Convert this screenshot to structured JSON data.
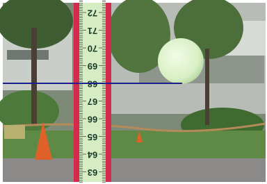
{
  "ruler": {
    "labels": [
      "72",
      "71",
      "70",
      "69",
      "68",
      "67",
      "66",
      "65",
      "64",
      "63"
    ]
  }
}
